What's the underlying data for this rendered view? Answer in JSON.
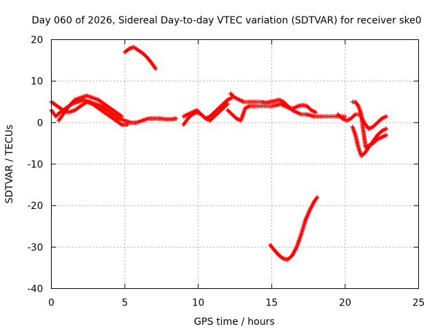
{
  "chart_data": {
    "type": "scatter",
    "title": "Day 060 of 2026, Sidereal Day-to-day VTEC variation (SDTVAR) for receiver ske0",
    "xlabel": "GPS time / hours",
    "ylabel": "SDTVAR / TECUs",
    "xlim": [
      0,
      25
    ],
    "ylim": [
      -40,
      20
    ],
    "xticks": [
      0,
      5,
      10,
      15,
      20,
      25
    ],
    "yticks": [
      -40,
      -30,
      -20,
      -10,
      0,
      10,
      20
    ],
    "xtick_labels": [
      "0",
      "5",
      "10",
      "15",
      "20",
      "25"
    ],
    "ytick_labels": [
      "-40",
      "-30",
      "-20",
      "-10",
      "0",
      "10",
      "20"
    ],
    "grid": true,
    "marker": "plus",
    "series_color": "#ff0000",
    "series": [
      {
        "name": "arc-early-1",
        "x": [
          0.0,
          0.3,
          0.6,
          1.0,
          1.4,
          1.8,
          2.2,
          2.6,
          3.0,
          3.4,
          3.8,
          4.2,
          4.6,
          5.0,
          5.4,
          5.8,
          6.2,
          6.6,
          7.0,
          7.4,
          7.8,
          8.2,
          8.5
        ],
        "y": [
          3.0,
          1.5,
          2.5,
          3.5,
          4.5,
          5.0,
          5.5,
          5.0,
          4.5,
          4.0,
          3.0,
          2.0,
          1.0,
          0.5,
          0.0,
          0.0,
          0.5,
          1.0,
          1.0,
          1.0,
          0.8,
          0.8,
          1.0
        ]
      },
      {
        "name": "arc-early-2",
        "x": [
          0.5,
          0.8,
          1.2,
          1.6,
          2.0,
          2.4,
          2.8,
          3.2,
          3.6,
          4.0,
          4.4,
          4.8
        ],
        "y": [
          0.5,
          2.0,
          4.0,
          5.5,
          6.0,
          6.5,
          6.0,
          5.5,
          4.5,
          3.5,
          2.5,
          1.5
        ]
      },
      {
        "name": "arc-early-3",
        "x": [
          0.0,
          0.4,
          0.8,
          1.2,
          1.6,
          2.0,
          2.4,
          2.8,
          3.2,
          3.6,
          4.0,
          4.4,
          4.8,
          5.2
        ],
        "y": [
          5.0,
          4.0,
          3.0,
          2.5,
          3.0,
          4.0,
          5.0,
          4.5,
          3.5,
          2.5,
          1.5,
          0.5,
          -0.5,
          -0.5
        ]
      },
      {
        "name": "arc-high",
        "x": [
          5.0,
          5.3,
          5.6,
          5.9,
          6.2,
          6.5,
          6.8,
          7.1
        ],
        "y": [
          17.0,
          17.8,
          18.2,
          17.5,
          16.8,
          15.8,
          14.5,
          13.0
        ]
      },
      {
        "name": "arc-mid-1",
        "x": [
          9.0,
          9.3,
          9.6,
          9.9,
          10.2,
          10.5,
          10.8,
          11.1,
          11.4,
          11.7,
          12.0
        ],
        "y": [
          -0.5,
          1.0,
          2.0,
          2.5,
          2.0,
          1.0,
          0.5,
          1.5,
          2.5,
          3.5,
          4.5
        ]
      },
      {
        "name": "arc-mid-2",
        "x": [
          9.0,
          9.3,
          9.6,
          9.9,
          10.2,
          10.5,
          10.8,
          11.1,
          11.4,
          11.7,
          12.0,
          12.3
        ],
        "y": [
          1.5,
          2.0,
          2.5,
          3.0,
          2.0,
          1.0,
          1.5,
          2.5,
          3.5,
          4.5,
          5.5,
          6.0
        ]
      },
      {
        "name": "arc-late-1",
        "x": [
          12.2,
          12.5,
          12.8,
          13.1,
          13.4,
          13.7,
          14.0,
          14.3,
          14.6,
          14.9,
          15.2,
          15.5,
          15.8,
          16.1,
          16.4,
          16.7,
          17.0,
          17.3,
          17.6,
          17.9,
          18.2,
          18.5,
          18.8,
          19.1,
          19.4,
          19.7,
          20.0
        ],
        "y": [
          7.0,
          6.0,
          5.5,
          5.0,
          5.0,
          5.0,
          5.0,
          5.0,
          4.8,
          5.0,
          5.2,
          5.5,
          5.0,
          4.0,
          3.0,
          2.5,
          2.0,
          2.0,
          1.8,
          1.5,
          1.5,
          1.5,
          1.5,
          1.5,
          1.5,
          1.5,
          1.5
        ]
      },
      {
        "name": "arc-late-2",
        "x": [
          12.0,
          12.3,
          12.6,
          12.9,
          13.2,
          13.5,
          13.8,
          14.1,
          14.4,
          14.7,
          15.0,
          15.3,
          15.6,
          15.9,
          16.2,
          16.5,
          16.8,
          17.1,
          17.4,
          17.7,
          18.0
        ],
        "y": [
          3.0,
          2.0,
          1.0,
          0.5,
          3.5,
          4.0,
          4.0,
          4.0,
          4.0,
          4.0,
          4.0,
          4.2,
          4.5,
          4.0,
          3.5,
          3.5,
          4.0,
          4.2,
          4.0,
          3.0,
          2.5
        ]
      },
      {
        "name": "arc-low",
        "x": [
          14.9,
          15.2,
          15.5,
          15.8,
          16.1,
          16.4,
          16.7,
          17.0,
          17.3,
          17.6,
          17.9,
          18.1
        ],
        "y": [
          -29.5,
          -30.8,
          -32.0,
          -32.8,
          -33.0,
          -32.0,
          -30.0,
          -27.0,
          -23.5,
          -21.0,
          -19.0,
          -18.0
        ]
      },
      {
        "name": "arc-end-1",
        "x": [
          19.5,
          19.8,
          20.1,
          20.4,
          20.7,
          21.0,
          21.3,
          21.6,
          21.9,
          22.2,
          22.5,
          22.8
        ],
        "y": [
          2.0,
          1.0,
          0.5,
          1.0,
          2.0,
          2.0,
          0.0,
          -1.5,
          -1.0,
          0.0,
          1.0,
          1.5
        ]
      },
      {
        "name": "arc-end-2",
        "x": [
          20.5,
          20.7,
          20.9,
          21.1,
          21.2,
          21.4,
          21.6,
          21.9,
          22.2,
          22.5,
          22.8
        ],
        "y": [
          5.0,
          5.0,
          4.0,
          2.0,
          -1.0,
          -6.0,
          -5.5,
          -5.0,
          -4.0,
          -3.5,
          -3.0
        ]
      },
      {
        "name": "arc-end-3",
        "x": [
          20.5,
          20.7,
          20.9,
          21.1,
          21.3,
          21.6,
          21.9,
          22.2,
          22.5,
          22.8
        ],
        "y": [
          -1.0,
          -3.0,
          -6.0,
          -8.0,
          -7.5,
          -6.0,
          -4.5,
          -3.0,
          -2.0,
          -1.5
        ]
      }
    ]
  }
}
